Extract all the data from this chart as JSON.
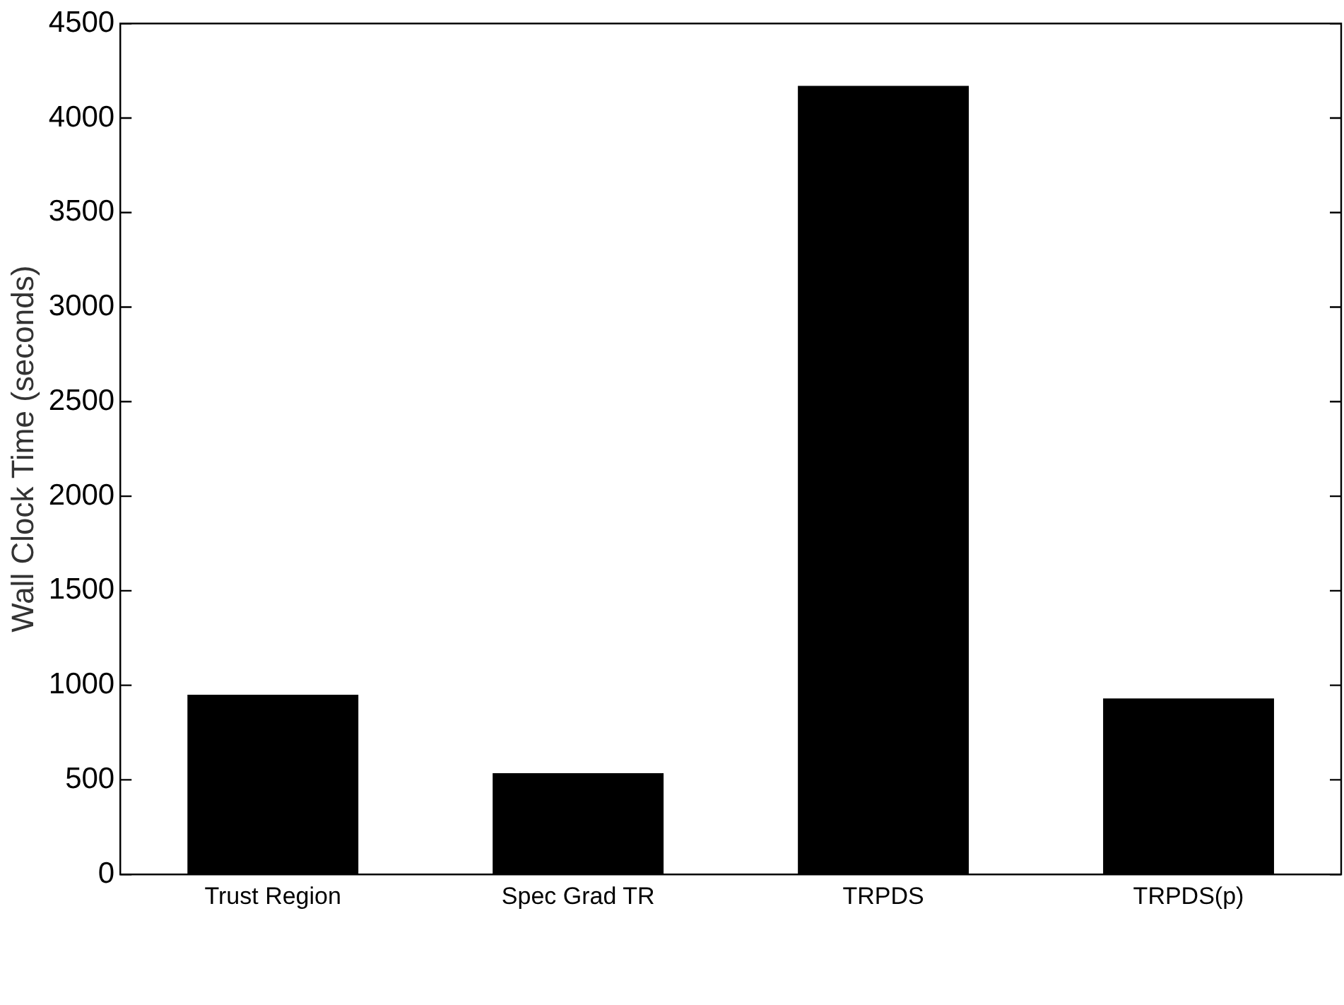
{
  "chart_data": {
    "type": "bar",
    "ylabel": "Wall Clock Time (seconds)",
    "categories": [
      "Trust Region",
      "Spec Grad TR",
      "TRPDS",
      "TRPDS(p)"
    ],
    "values": [
      950,
      535,
      4170,
      930
    ],
    "color": "#000000",
    "ylim": [
      0,
      4500
    ],
    "yticks": [
      0,
      500,
      1000,
      1500,
      2000,
      2500,
      3000,
      3500,
      4000,
      4500
    ],
    "grid": false,
    "legend": false
  }
}
